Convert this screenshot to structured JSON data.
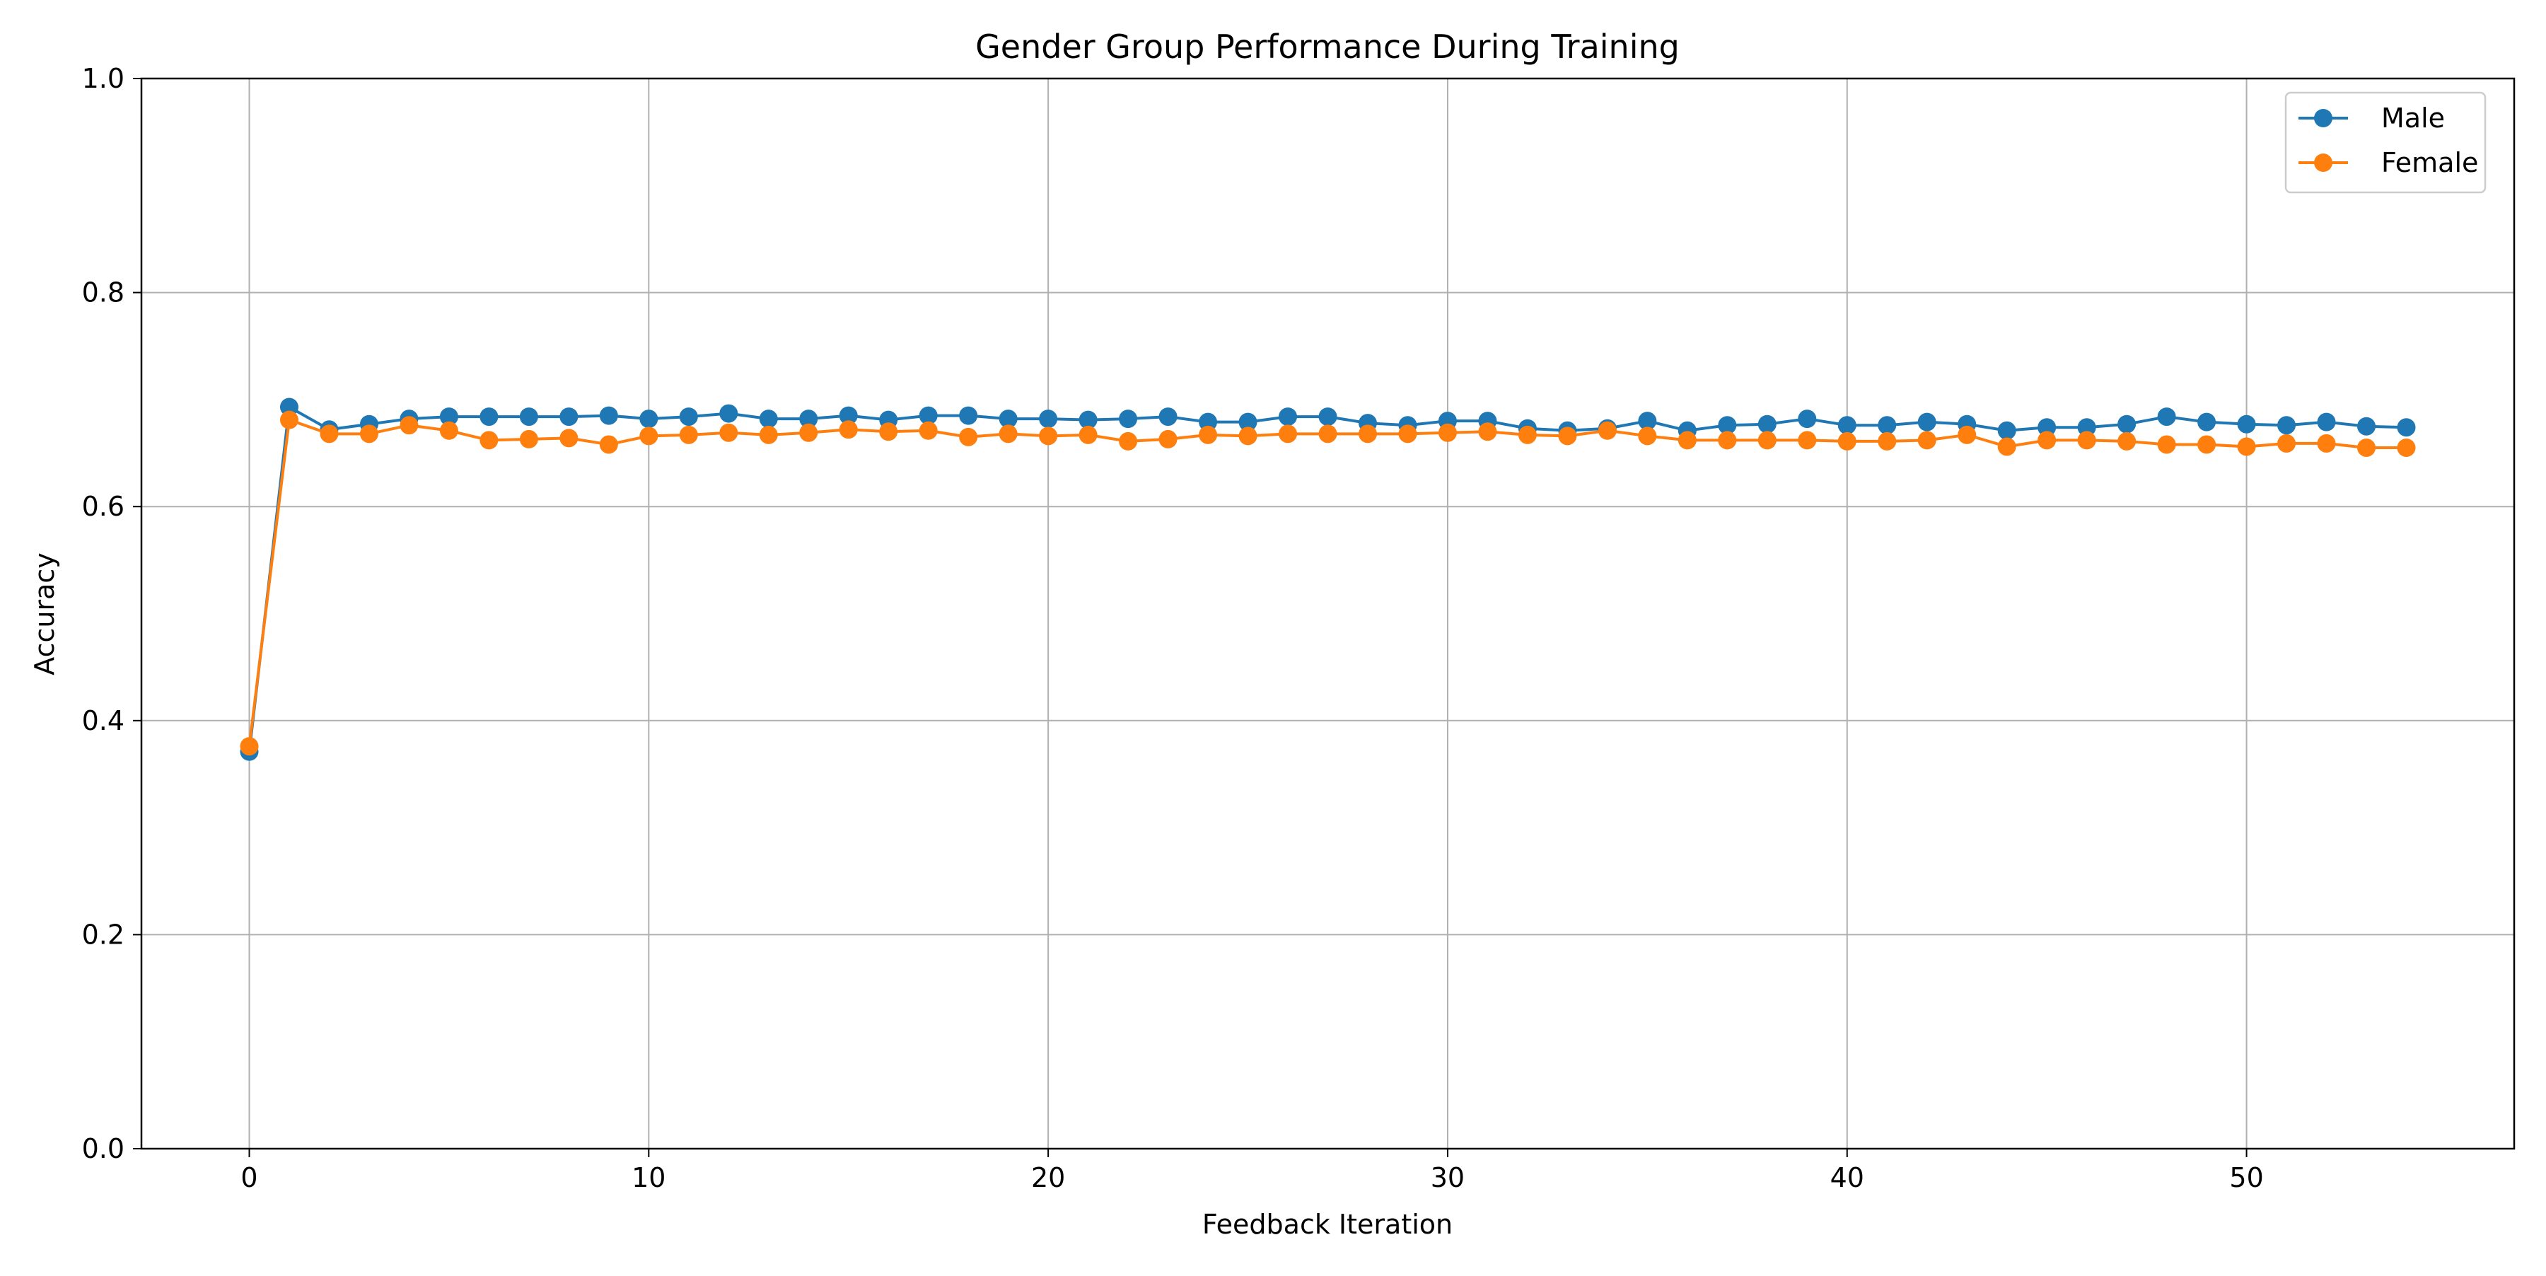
{
  "chart_data": {
    "type": "line",
    "title": "Gender Group Performance During Training",
    "xlabel": "Feedback Iteration",
    "ylabel": "Accuracy",
    "xlim": [
      -2.7,
      56.7
    ],
    "ylim": [
      0.0,
      1.0
    ],
    "xticks": [
      0,
      10,
      20,
      30,
      40,
      50
    ],
    "yticks": [
      0.0,
      0.2,
      0.4,
      0.6,
      0.8,
      1.0
    ],
    "xtick_labels": [
      "0",
      "10",
      "20",
      "30",
      "40",
      "50"
    ],
    "ytick_labels": [
      "0.0",
      "0.2",
      "0.4",
      "0.6",
      "0.8",
      "1.0"
    ],
    "grid": true,
    "legend_position": "top-right",
    "x": [
      0,
      1,
      2,
      3,
      4,
      5,
      6,
      7,
      8,
      9,
      10,
      11,
      12,
      13,
      14,
      15,
      16,
      17,
      18,
      19,
      20,
      21,
      22,
      23,
      24,
      25,
      26,
      27,
      28,
      29,
      30,
      31,
      32,
      33,
      34,
      35,
      36,
      37,
      38,
      39,
      40,
      41,
      42,
      43,
      44,
      45,
      46,
      47,
      48,
      49,
      50,
      51,
      52,
      53,
      54
    ],
    "series": [
      {
        "name": "Male",
        "color": "#1f77b4",
        "marker": "circle",
        "values": [
          0.371,
          0.693,
          0.672,
          0.677,
          0.682,
          0.684,
          0.684,
          0.684,
          0.684,
          0.685,
          0.682,
          0.684,
          0.687,
          0.682,
          0.682,
          0.685,
          0.681,
          0.685,
          0.685,
          0.682,
          0.682,
          0.681,
          0.682,
          0.684,
          0.679,
          0.679,
          0.684,
          0.684,
          0.678,
          0.676,
          0.68,
          0.68,
          0.673,
          0.671,
          0.673,
          0.68,
          0.671,
          0.676,
          0.677,
          0.682,
          0.676,
          0.676,
          0.679,
          0.677,
          0.671,
          0.674,
          0.674,
          0.677,
          0.684,
          0.679,
          0.677,
          0.676,
          0.679,
          0.675,
          0.674
        ]
      },
      {
        "name": "Female",
        "color": "#ff7f0e",
        "marker": "circle",
        "values": [
          0.376,
          0.681,
          0.668,
          0.668,
          0.676,
          0.671,
          0.662,
          0.663,
          0.664,
          0.658,
          0.666,
          0.667,
          0.669,
          0.667,
          0.669,
          0.672,
          0.67,
          0.671,
          0.665,
          0.668,
          0.666,
          0.667,
          0.661,
          0.663,
          0.667,
          0.666,
          0.668,
          0.668,
          0.668,
          0.668,
          0.669,
          0.67,
          0.667,
          0.666,
          0.671,
          0.666,
          0.662,
          0.662,
          0.662,
          0.662,
          0.661,
          0.661,
          0.662,
          0.667,
          0.656,
          0.662,
          0.662,
          0.661,
          0.658,
          0.658,
          0.656,
          0.659,
          0.659,
          0.655,
          0.655
        ]
      }
    ]
  }
}
